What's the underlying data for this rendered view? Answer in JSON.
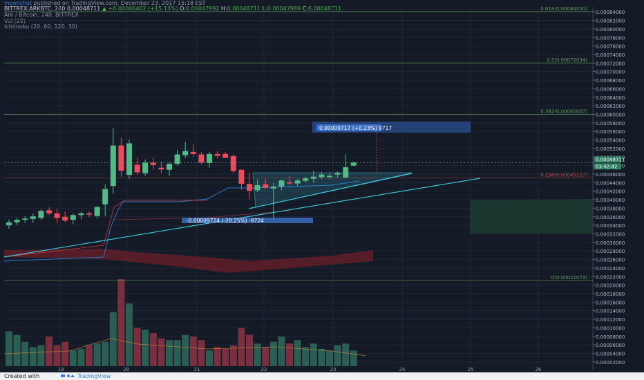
{
  "header": {
    "author": "moonshot",
    "published": " published on TradingView.com, December 23, 2017 15:18 EST",
    "symbol": "BITTREX:ARKBTC, 240",
    "last": "0.00048711",
    "change": "▲ +0.00006402 (+15.13%)",
    "o_label": "O:",
    "o": "0.00047992",
    "h_label": "H:",
    "h": "0.00048711",
    "l_label": "L:",
    "l": "0.00047989",
    "c_label": "C:",
    "c": "0.00048711",
    "chart_title": "Ark / Bitcoin, 240, BITTREX",
    "vol_label": "Vol (20)",
    "ichimoku_label": "Ichimoku (20, 60, 120, 30)"
  },
  "footer": {
    "created_with": "Created with",
    "brand": "TradingView"
  },
  "colors": {
    "background": "#151a27",
    "up": "#53b987",
    "down": "#eb4d5c",
    "volume_up": "#2f6b5c",
    "volume_down": "#8b3442",
    "trendline": "#3fc4d9",
    "fib": "#5fa05a",
    "measure": "#2f62b4",
    "kijun": "#2a75c9",
    "cloud": "#6b1f2a",
    "cloud_green": "#1f4a33"
  },
  "chart_data": {
    "type": "candlestick",
    "y_axis_ticks": [
      "0.00084000",
      "0.00082000",
      "0.00080000",
      "0.00078000",
      "0.00076000",
      "0.00074000",
      "0.00072000",
      "0.00070000",
      "0.00068000",
      "0.00066000",
      "0.00064000",
      "0.00062000",
      "0.00060000",
      "0.00058000",
      "0.00056000",
      "0.00054000",
      "0.00052000",
      "0.00050000",
      "0.00048000",
      "0.00046000",
      "0.00044000",
      "0.00042000",
      "0.00040000",
      "0.00038000",
      "0.00036000",
      "0.00034000",
      "0.00032000",
      "0.00030000",
      "0.00028000",
      "0.00026000",
      "0.00024000",
      "0.00022000",
      "0.00020000",
      "0.00018000",
      "0.00016000",
      "0.00014000",
      "0.00012000",
      "0.00010000",
      "0.00008000",
      "0.00006000",
      "0.00004000",
      "0.00002000"
    ],
    "x_axis_ticks": [
      "19",
      "20",
      "21",
      "22",
      "23",
      "24",
      "25",
      "26"
    ],
    "ylim": [
      1e-05,
      0.00085
    ],
    "candles": [
      {
        "o": 0.00034,
        "h": 0.000354,
        "l": 0.000331,
        "c": 0.000347
      },
      {
        "o": 0.000347,
        "h": 0.000358,
        "l": 0.00034,
        "c": 0.000353
      },
      {
        "o": 0.000353,
        "h": 0.000361,
        "l": 0.000346,
        "c": 0.000356
      },
      {
        "o": 0.000355,
        "h": 0.000368,
        "l": 0.000346,
        "c": 0.000361
      },
      {
        "o": 0.000357,
        "h": 0.000378,
        "l": 0.000352,
        "c": 0.000374
      },
      {
        "o": 0.000375,
        "h": 0.000382,
        "l": 0.000364,
        "c": 0.000368
      },
      {
        "o": 0.000368,
        "h": 0.000379,
        "l": 0.000345,
        "c": 0.000357
      },
      {
        "o": 0.00036,
        "h": 0.000372,
        "l": 0.000347,
        "c": 0.000351
      },
      {
        "o": 0.000353,
        "h": 0.000368,
        "l": 0.000343,
        "c": 0.000364
      },
      {
        "o": 0.000364,
        "h": 0.000372,
        "l": 0.000354,
        "c": 0.000368
      },
      {
        "o": 0.000368,
        "h": 0.000372,
        "l": 0.000359,
        "c": 0.000365
      },
      {
        "o": 0.000362,
        "h": 0.000385,
        "l": 0.000356,
        "c": 0.000383
      },
      {
        "o": 0.000389,
        "h": 0.000436,
        "l": 0.000362,
        "c": 0.000425
      },
      {
        "o": 0.000432,
        "h": 0.000568,
        "l": 0.000414,
        "c": 0.000527
      },
      {
        "o": 0.000527,
        "h": 0.000545,
        "l": 0.000454,
        "c": 0.000468
      },
      {
        "o": 0.000458,
        "h": 0.000541,
        "l": 0.000448,
        "c": 0.000532
      },
      {
        "o": 0.000482,
        "h": 0.000498,
        "l": 0.000458,
        "c": 0.000464
      },
      {
        "o": 0.000462,
        "h": 0.000494,
        "l": 0.000456,
        "c": 0.000487
      },
      {
        "o": 0.000487,
        "h": 0.000498,
        "l": 0.00047,
        "c": 0.000481
      },
      {
        "o": 0.000475,
        "h": 0.000489,
        "l": 0.000462,
        "c": 0.000471
      },
      {
        "o": 0.00047,
        "h": 0.000488,
        "l": 0.000456,
        "c": 0.000484
      },
      {
        "o": 0.000484,
        "h": 0.000517,
        "l": 0.00048,
        "c": 0.000506
      },
      {
        "o": 0.000504,
        "h": 0.000536,
        "l": 0.000498,
        "c": 0.000514
      },
      {
        "o": 0.000512,
        "h": 0.000531,
        "l": 0.000501,
        "c": 0.000507
      },
      {
        "o": 0.000506,
        "h": 0.000512,
        "l": 0.000483,
        "c": 0.000487
      },
      {
        "o": 0.000486,
        "h": 0.000512,
        "l": 0.000475,
        "c": 0.000507
      },
      {
        "o": 0.000507,
        "h": 0.000514,
        "l": 0.000497,
        "c": 0.000503
      },
      {
        "o": 0.000507,
        "h": 0.000512,
        "l": 0.000499,
        "c": 0.000498
      },
      {
        "o": 0.000502,
        "h": 0.000506,
        "l": 0.000462,
        "c": 0.000467
      },
      {
        "o": 0.00047,
        "h": 0.000471,
        "l": 0.000424,
        "c": 0.000437
      },
      {
        "o": 0.000437,
        "h": 0.000464,
        "l": 0.000401,
        "c": 0.000421
      },
      {
        "o": 0.000422,
        "h": 0.000448,
        "l": 0.000418,
        "c": 0.000434
      },
      {
        "o": 0.000436,
        "h": 0.000448,
        "l": 0.000424,
        "c": 0.000428
      },
      {
        "o": 0.000426,
        "h": 0.00044,
        "l": 0.000356,
        "c": 0.000431
      },
      {
        "o": 0.000431,
        "h": 0.000447,
        "l": 0.000422,
        "c": 0.000445
      },
      {
        "o": 0.000441,
        "h": 0.000454,
        "l": 0.000434,
        "c": 0.000438
      },
      {
        "o": 0.000438,
        "h": 0.000448,
        "l": 0.000432,
        "c": 0.000445
      },
      {
        "o": 0.000444,
        "h": 0.000454,
        "l": 0.00044,
        "c": 0.00045
      },
      {
        "o": 0.000449,
        "h": 0.000468,
        "l": 0.00044,
        "c": 0.000454
      },
      {
        "o": 0.000453,
        "h": 0.000465,
        "l": 0.000448,
        "c": 0.000459
      },
      {
        "o": 0.000453,
        "h": 0.000463,
        "l": 0.000448,
        "c": 0.000456
      },
      {
        "o": 0.000459,
        "h": 0.000466,
        "l": 0.000452,
        "c": 0.000463
      },
      {
        "o": 0.000452,
        "h": 0.000507,
        "l": 0.00045,
        "c": 0.000476
      },
      {
        "o": 0.00048,
        "h": 0.000489,
        "l": 0.000478,
        "c": 0.000487
      }
    ],
    "volume": [
      0.4,
      0.36,
      0.28,
      0.22,
      0.24,
      0.34,
      0.24,
      0.28,
      0.18,
      0.2,
      0.24,
      0.26,
      0.28,
      0.62,
      1.0,
      0.72,
      0.44,
      0.42,
      0.38,
      0.32,
      0.3,
      0.3,
      0.36,
      0.34,
      0.3,
      0.18,
      0.22,
      0.2,
      0.24,
      0.44,
      0.36,
      0.26,
      0.22,
      0.28,
      0.34,
      0.26,
      0.3,
      0.22,
      0.26,
      0.2,
      0.18,
      0.24,
      0.26,
      0.18
    ],
    "fib_levels": [
      {
        "label": "0.618(0.00084050)",
        "price": 0.0008405
      },
      {
        "label": "0.5(0.00072034)",
        "price": 0.00072034
      },
      {
        "label": "0.382(0.00060007)",
        "price": 0.00060007
      },
      {
        "label": "0.236(0.00045127)",
        "price": 0.00045127
      },
      {
        "label": "0(0.00021073)",
        "price": 0.00021073
      }
    ],
    "measure_labels": [
      {
        "label": "0.00009717 (+0.23%) 9717"
      },
      {
        "label": "-0.00009724 (-20.25%) -9724"
      }
    ],
    "price_labels": [
      "0.00048711",
      "03:42:42"
    ]
  }
}
